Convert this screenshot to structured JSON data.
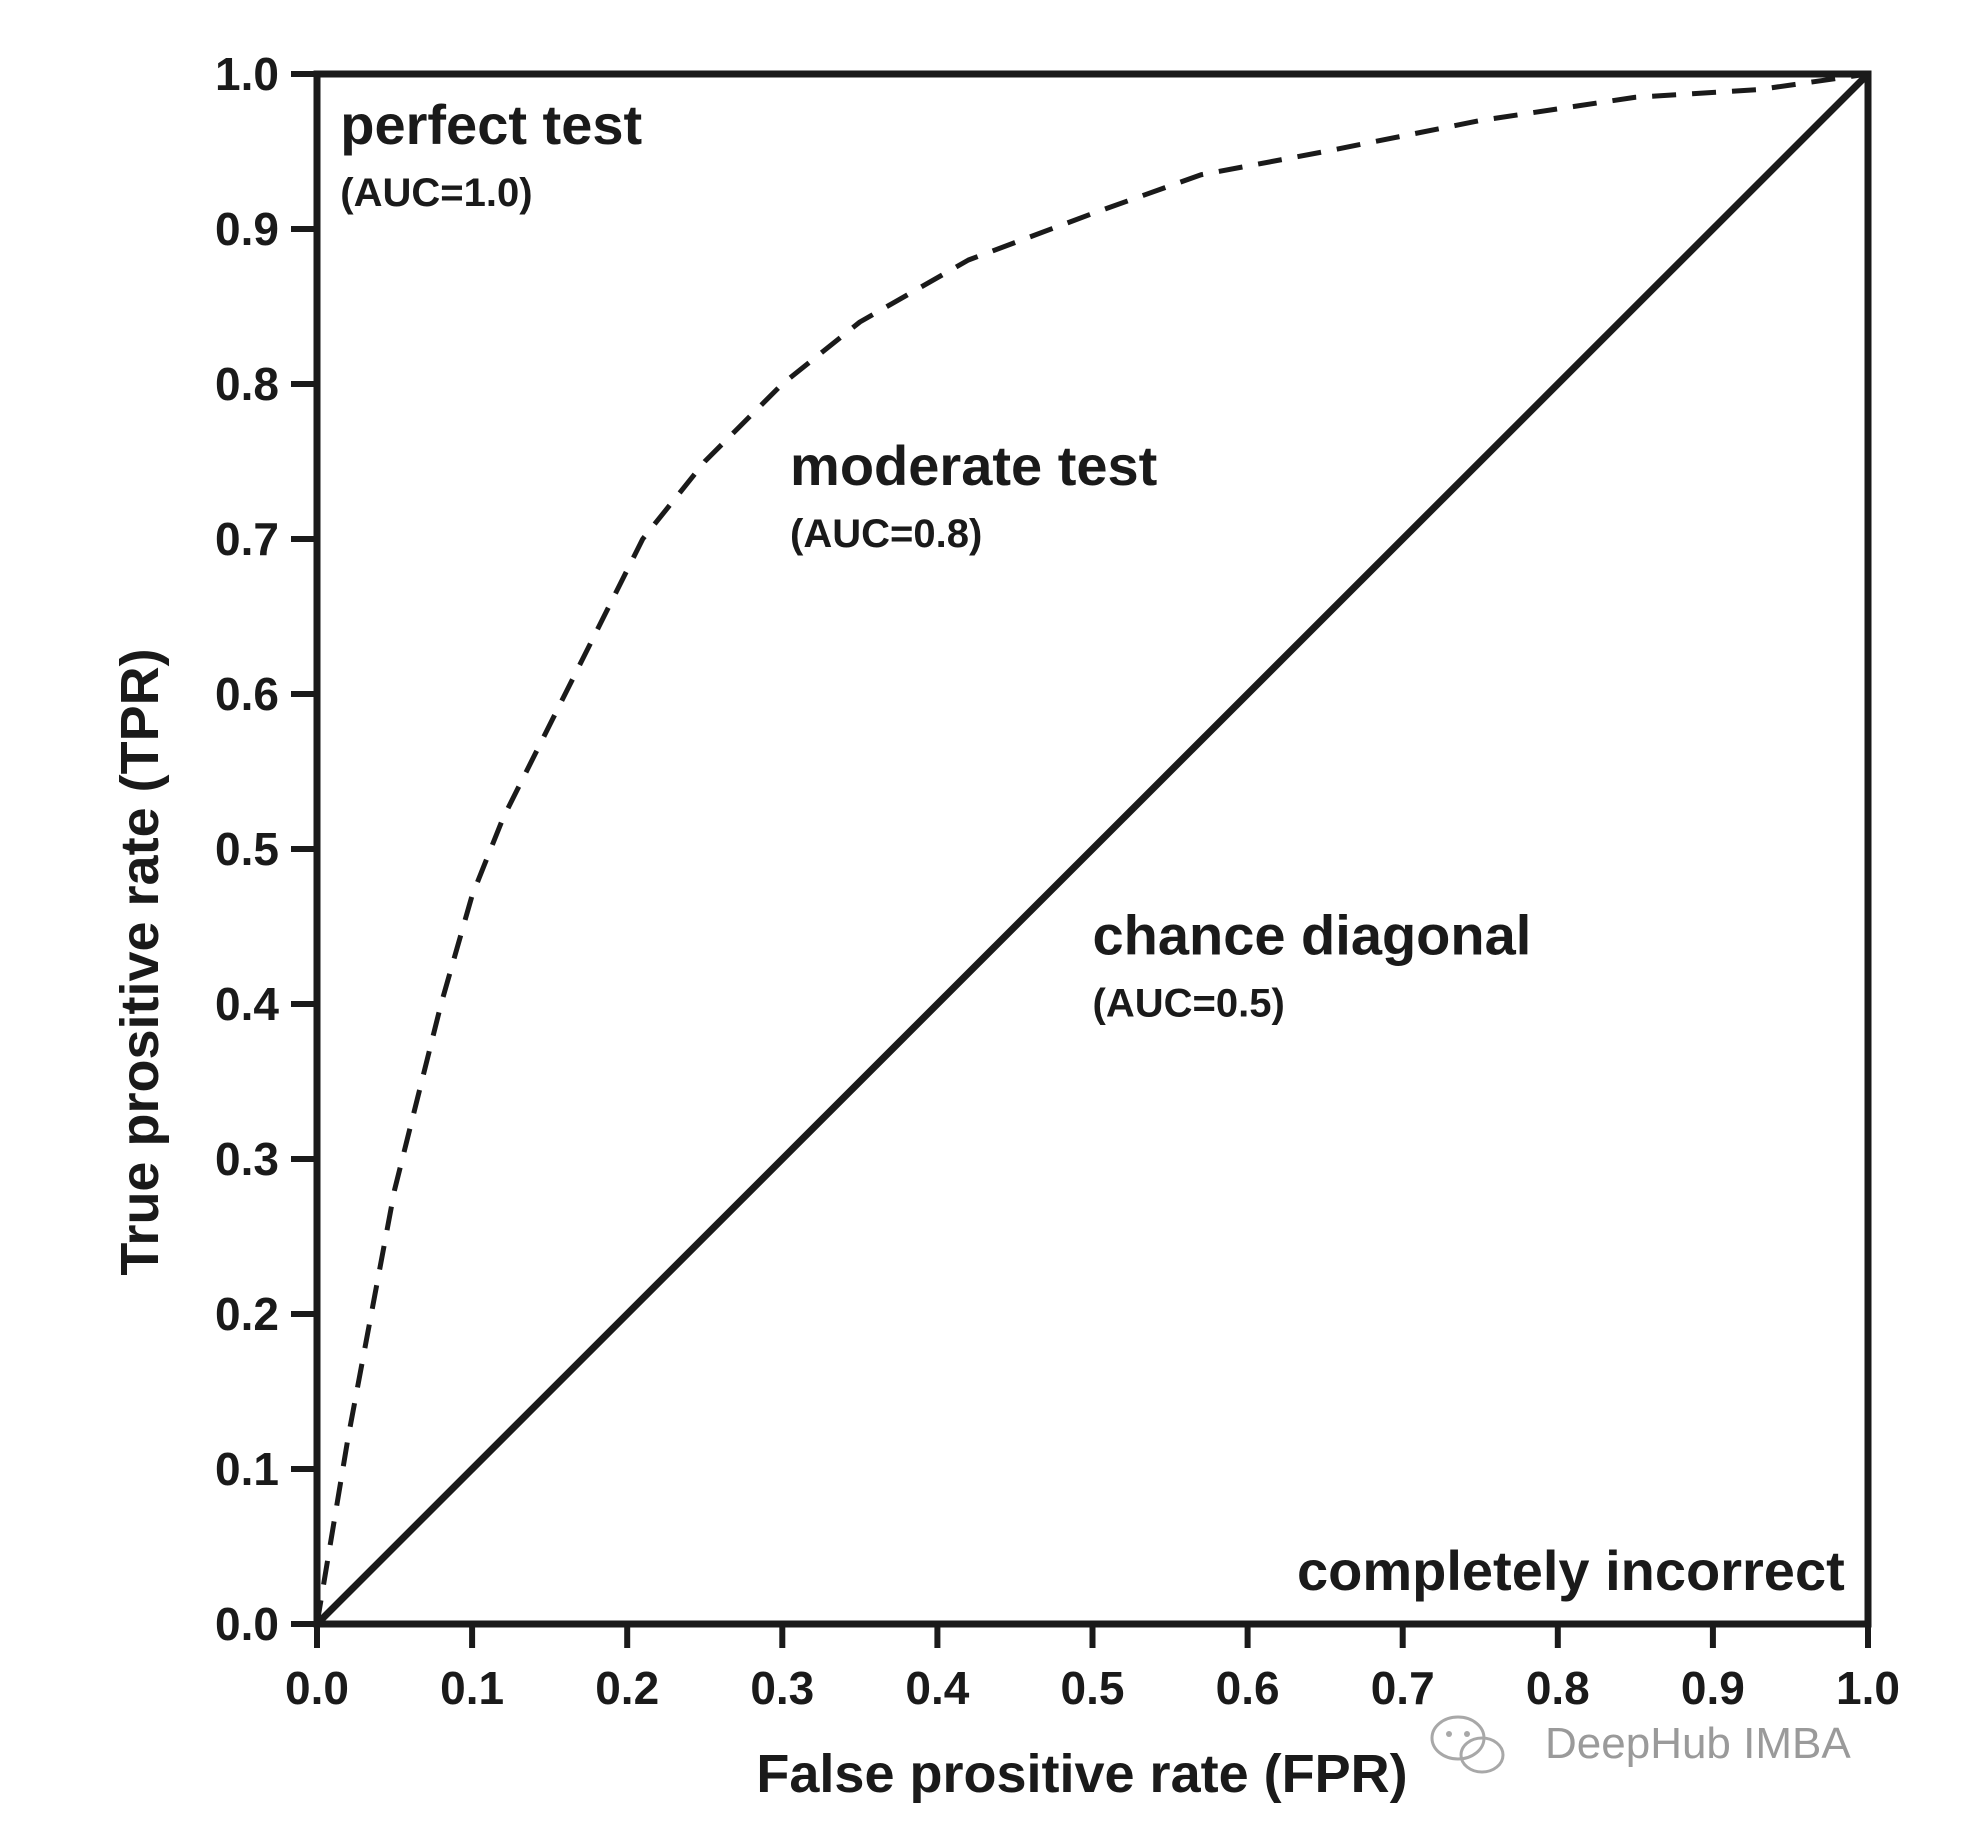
{
  "chart_data": {
    "type": "line",
    "xlabel": "False prositive rate (FPR)",
    "ylabel": "True prositive rate (TPR)",
    "xlim": [
      0,
      1
    ],
    "ylim": [
      0,
      1
    ],
    "x_ticks": [
      "0.0",
      "0.1",
      "0.2",
      "0.3",
      "0.4",
      "0.5",
      "0.6",
      "0.7",
      "0.8",
      "0.9",
      "1.0"
    ],
    "y_ticks": [
      "0.0",
      "0.1",
      "0.2",
      "0.3",
      "0.4",
      "0.5",
      "0.6",
      "0.7",
      "0.8",
      "0.9",
      "1.0"
    ],
    "grid": false,
    "series": [
      {
        "style": "dashed",
        "x": [
          0.0,
          0.02,
          0.05,
          0.08,
          0.1,
          0.12,
          0.15,
          0.18,
          0.21,
          0.25,
          0.3,
          0.35,
          0.42,
          0.5,
          0.57,
          0.65,
          0.75,
          0.85,
          0.93,
          1.0
        ],
        "y": [
          0.0,
          0.12,
          0.28,
          0.4,
          0.47,
          0.52,
          0.58,
          0.64,
          0.7,
          0.75,
          0.8,
          0.84,
          0.88,
          0.91,
          0.935,
          0.95,
          0.97,
          0.985,
          0.99,
          1.0
        ]
      },
      {
        "style": "solid",
        "x": [
          0.0,
          1.0
        ],
        "y": [
          0.0,
          1.0
        ]
      }
    ],
    "annotations": [
      {
        "title": "perfect test",
        "sub": "(AUC=1.0)",
        "x": 0.015,
        "y": 0.955
      },
      {
        "title": "moderate test",
        "sub": "(AUC=0.8)",
        "x": 0.305,
        "y": 0.735
      },
      {
        "title": "chance diagonal",
        "sub": "(AUC=0.5)",
        "x": 0.5,
        "y": 0.432
      },
      {
        "title": "completely incorrect",
        "sub": "",
        "x": 0.985,
        "y": 0.022,
        "anchor": "end"
      }
    ]
  },
  "watermark": {
    "text": "DeepHub IMBA",
    "icon": "wechat-icon"
  }
}
